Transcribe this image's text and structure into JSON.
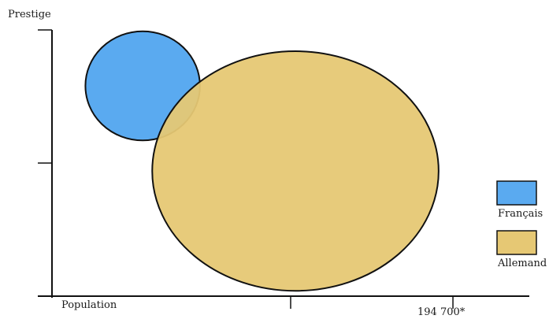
{
  "chart_data": {
    "type": "bubble",
    "ylabel": "Prestige",
    "xlabel": "Population",
    "x_tick_labels": [
      "",
      "194 700*"
    ],
    "legend_placement": "right",
    "series": [
      {
        "name": "Français",
        "color": "#5aaaf0",
        "x": 0.19,
        "y": 0.79,
        "rx": 0.12,
        "ry": 0.41
      },
      {
        "name": "Allemand",
        "color": "#e6c874",
        "opacity": 0.95,
        "x": 0.51,
        "y": 0.47,
        "rx": 0.3,
        "ry": 0.9
      }
    ],
    "y_ticks": [
      0.5,
      1.0
    ],
    "x_ticks": [
      0.5,
      0.84
    ],
    "grid": false
  }
}
